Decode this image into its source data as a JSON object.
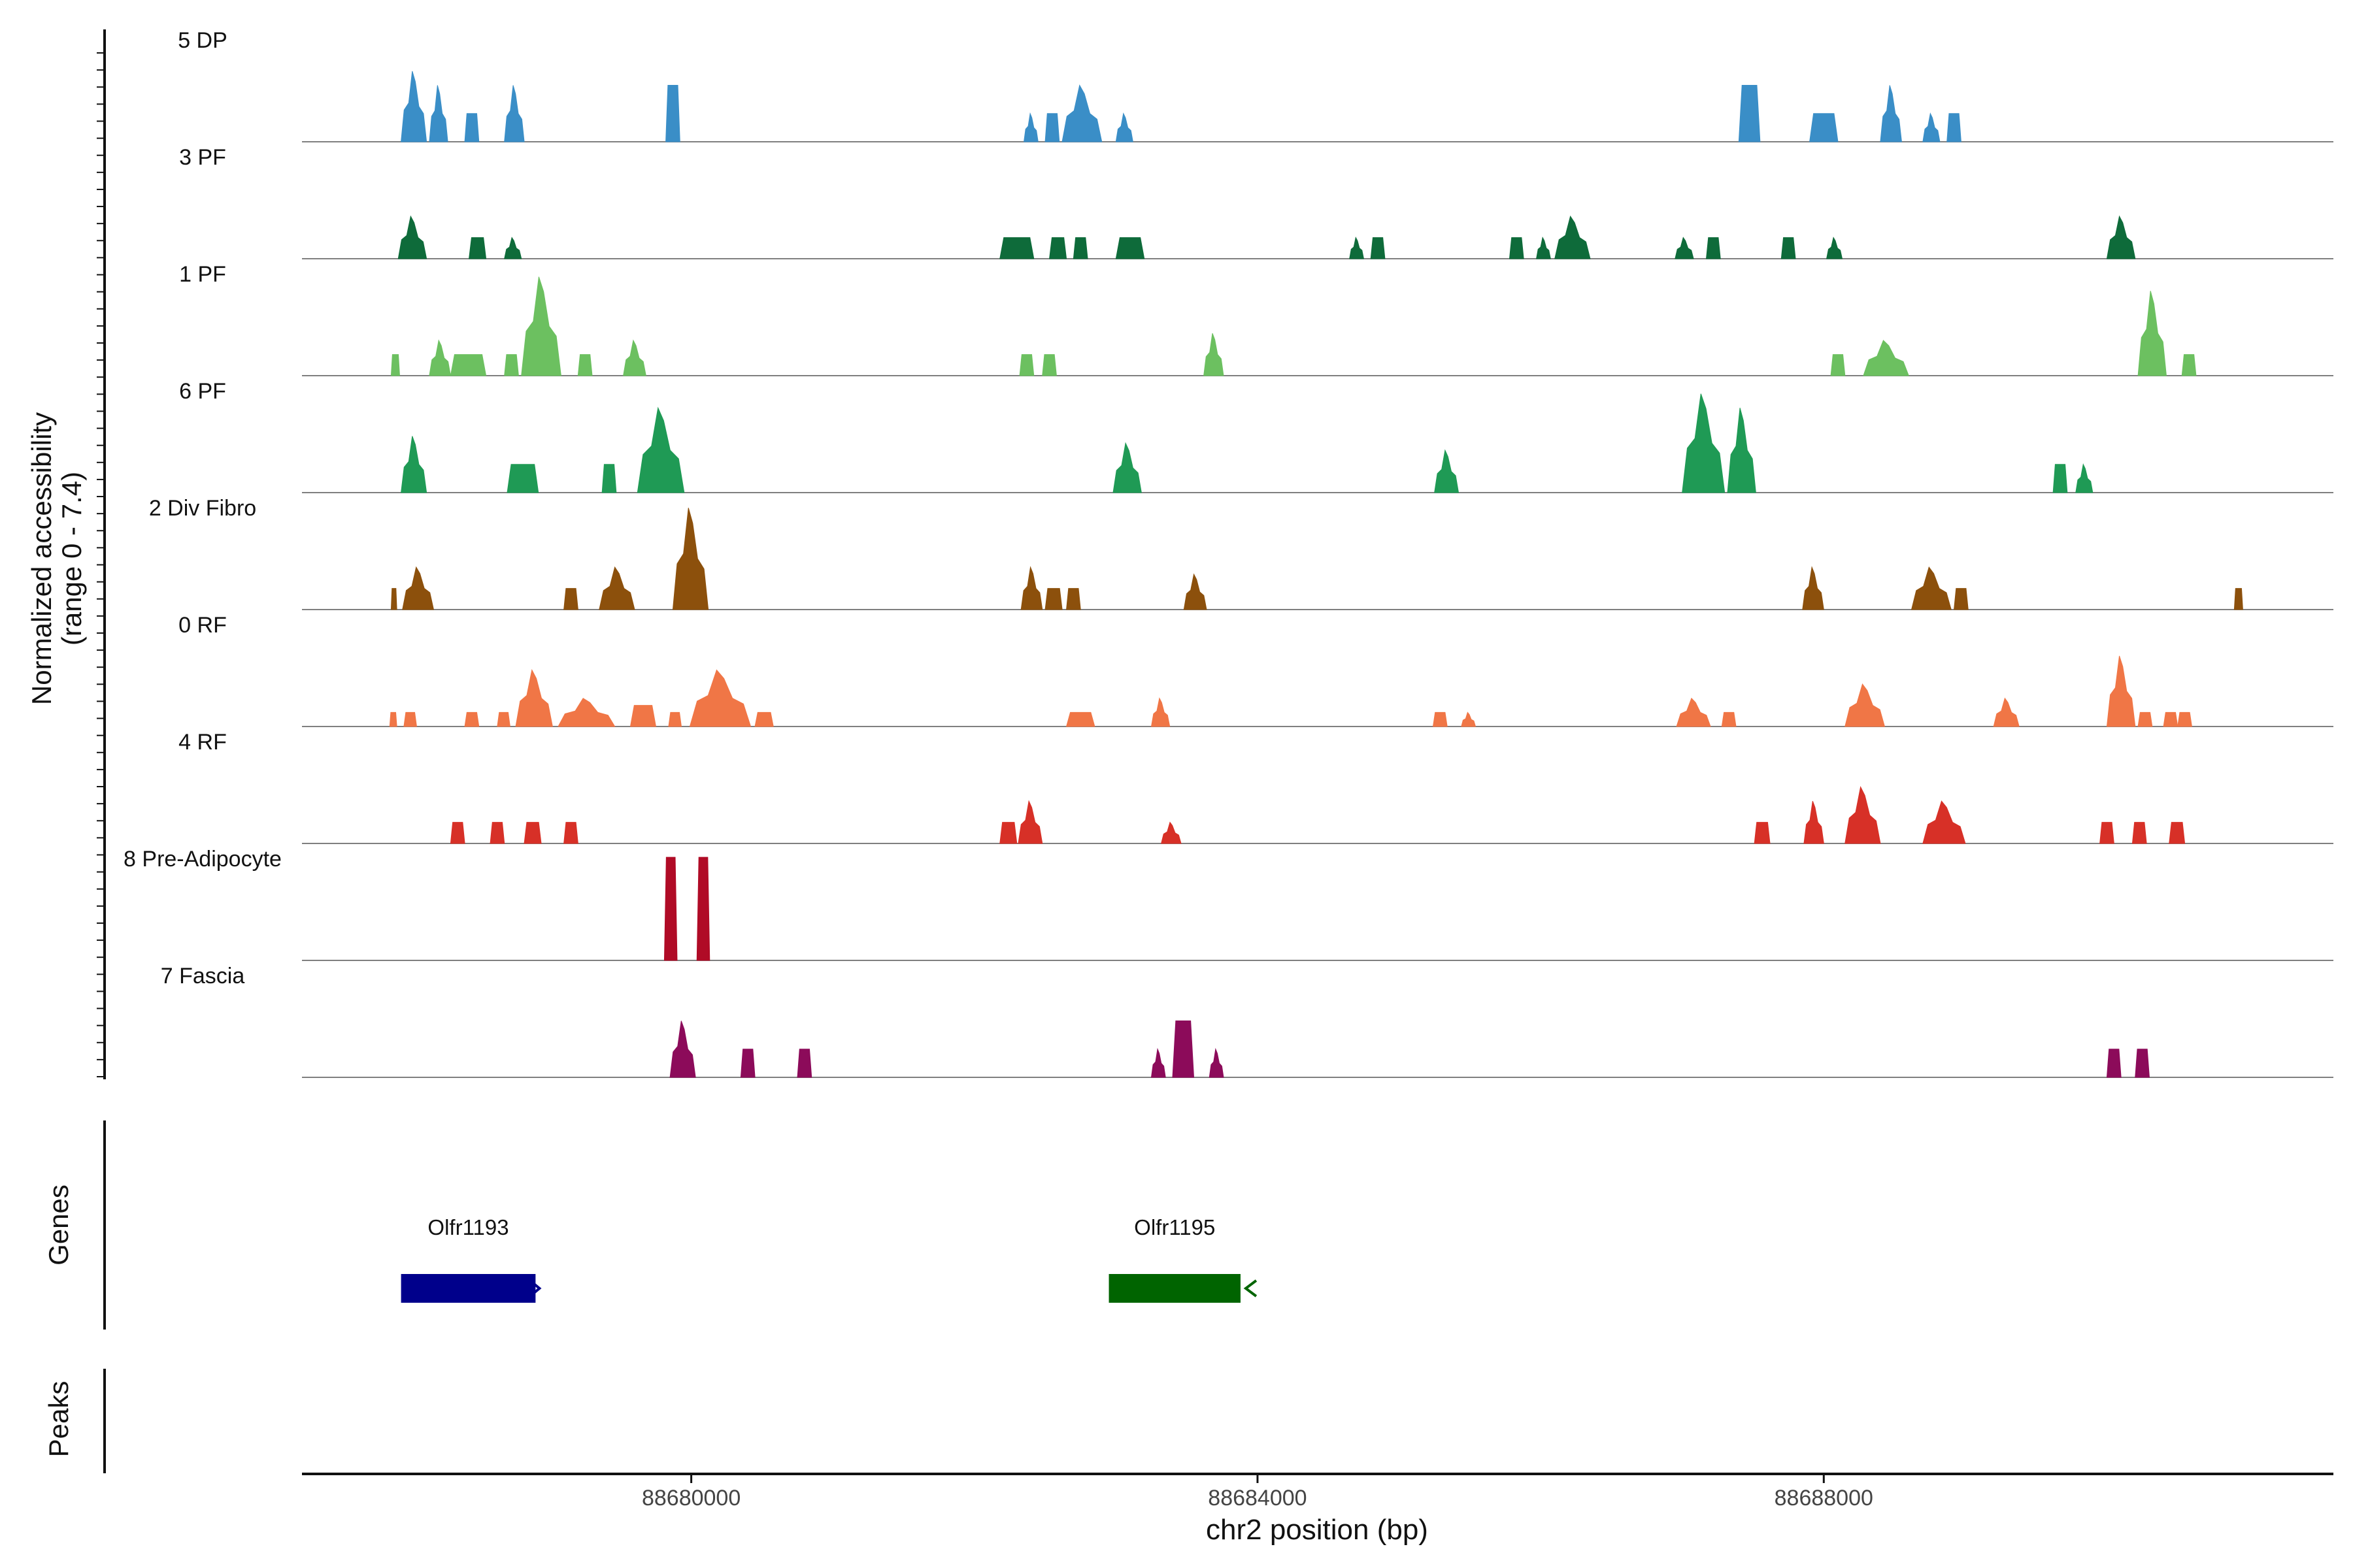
{
  "chart_data": {
    "type": "area",
    "title": "",
    "xlabel": "chr2 position (bp)",
    "ylabel_line1": "Normalized accessibility",
    "ylabel_line2": "(range 0 - 7.4)",
    "ylim": [
      0,
      7.4
    ],
    "xlim": [
      88677250,
      88691600
    ],
    "x_ticks": [
      88680000,
      88684000,
      88688000
    ],
    "x_tick_labels": [
      "88680000",
      "88684000",
      "88688000"
    ],
    "genes_panel_label": "Genes",
    "peaks_panel_label": "Peaks",
    "series": [
      {
        "name": "5 DP",
        "color": "#3a8ec7",
        "peaks": [
          [
            88677950,
            88678130,
            5.0,
            1
          ],
          [
            88678150,
            88678280,
            4.0,
            1
          ],
          [
            88678400,
            88678500,
            2.0,
            0
          ],
          [
            88678680,
            88678820,
            4.0,
            1
          ],
          [
            88679820,
            88679920,
            4.0,
            0
          ],
          [
            88682350,
            88682450,
            2.0,
            1
          ],
          [
            88682500,
            88682600,
            2.0,
            0
          ],
          [
            88682620,
            88682900,
            4.0,
            1
          ],
          [
            88683000,
            88683120,
            2.0,
            1
          ],
          [
            88687400,
            88687550,
            4.0,
            0
          ],
          [
            88687900,
            88688100,
            2.0,
            0
          ],
          [
            88688400,
            88688550,
            4.0,
            1
          ],
          [
            88688700,
            88688820,
            2.0,
            1
          ],
          [
            88688870,
            88688970,
            2.0,
            0
          ]
        ]
      },
      {
        "name": "3 PF",
        "color": "#0e6b3a",
        "peaks": [
          [
            88677930,
            88678130,
            3.0,
            1
          ],
          [
            88678430,
            88678550,
            1.5,
            0
          ],
          [
            88678680,
            88678800,
            1.5,
            1
          ],
          [
            88682180,
            88682420,
            1.5,
            0
          ],
          [
            88682530,
            88682650,
            1.5,
            0
          ],
          [
            88682700,
            88682800,
            1.5,
            0
          ],
          [
            88683000,
            88683200,
            1.5,
            0
          ],
          [
            88684650,
            88684750,
            1.5,
            1
          ],
          [
            88684800,
            88684900,
            1.5,
            0
          ],
          [
            88685780,
            88685880,
            1.5,
            0
          ],
          [
            88685970,
            88686070,
            1.5,
            1
          ],
          [
            88686100,
            88686350,
            3.0,
            1
          ],
          [
            88686950,
            88687080,
            1.5,
            1
          ],
          [
            88687170,
            88687270,
            1.5,
            0
          ],
          [
            88687700,
            88687800,
            1.5,
            0
          ],
          [
            88688020,
            88688130,
            1.5,
            1
          ],
          [
            88690000,
            88690200,
            3.0,
            1
          ]
        ]
      },
      {
        "name": "1 PF",
        "color": "#6cc060",
        "peaks": [
          [
            88677880,
            88677940,
            1.5,
            0
          ],
          [
            88678150,
            88678300,
            2.5,
            1
          ],
          [
            88678300,
            88678550,
            1.5,
            0
          ],
          [
            88678680,
            88678780,
            1.5,
            0
          ],
          [
            88678800,
            88679080,
            7.0,
            1
          ],
          [
            88679200,
            88679300,
            1.5,
            0
          ],
          [
            88679520,
            88679680,
            2.5,
            1
          ],
          [
            88682320,
            88682420,
            1.5,
            0
          ],
          [
            88682480,
            88682580,
            1.5,
            0
          ],
          [
            88683620,
            88683760,
            3.0,
            1
          ],
          [
            88688050,
            88688150,
            1.5,
            0
          ],
          [
            88688280,
            88688600,
            2.5,
            1
          ],
          [
            88690220,
            88690420,
            6.0,
            1
          ],
          [
            88690530,
            88690630,
            1.5,
            0
          ]
        ]
      },
      {
        "name": "6 PF",
        "color": "#1f9a55",
        "peaks": [
          [
            88677950,
            88678130,
            4.0,
            1
          ],
          [
            88678700,
            88678920,
            2.0,
            0
          ],
          [
            88679370,
            88679470,
            2.0,
            0
          ],
          [
            88679620,
            88679950,
            6.0,
            1
          ],
          [
            88682980,
            88683180,
            3.5,
            1
          ],
          [
            88685250,
            88685420,
            3.0,
            1
          ],
          [
            88687000,
            88687300,
            7.0,
            1
          ],
          [
            88687320,
            88687520,
            6.0,
            1
          ],
          [
            88689620,
            88689720,
            2.0,
            0
          ],
          [
            88689780,
            88689900,
            2.0,
            1
          ]
        ]
      },
      {
        "name": "2 Div Fibro",
        "color": "#8c500c",
        "peaks": [
          [
            88677880,
            88677920,
            1.5,
            0
          ],
          [
            88677960,
            88678180,
            3.0,
            1
          ],
          [
            88679100,
            88679200,
            1.5,
            0
          ],
          [
            88679350,
            88679600,
            3.0,
            1
          ],
          [
            88679870,
            88680120,
            7.2,
            1
          ],
          [
            88682330,
            88682480,
            3.0,
            1
          ],
          [
            88682500,
            88682620,
            1.5,
            0
          ],
          [
            88682650,
            88682750,
            1.5,
            0
          ],
          [
            88683480,
            88683640,
            2.5,
            1
          ],
          [
            88687850,
            88688000,
            3.0,
            1
          ],
          [
            88688620,
            88688900,
            3.0,
            1
          ],
          [
            88688920,
            88689020,
            1.5,
            0
          ],
          [
            88690900,
            88690960,
            1.5,
            0
          ]
        ]
      },
      {
        "name": "0 RF",
        "color": "#f07646",
        "peaks": [
          [
            88677870,
            88677920,
            1.0,
            0
          ],
          [
            88677970,
            88678060,
            1.0,
            0
          ],
          [
            88678400,
            88678500,
            1.0,
            0
          ],
          [
            88678630,
            88678720,
            1.0,
            0
          ],
          [
            88678760,
            88679020,
            4.0,
            1
          ],
          [
            88679060,
            88679460,
            2.0,
            1
          ],
          [
            88679570,
            88679750,
            1.5,
            0
          ],
          [
            88679840,
            88679930,
            1.0,
            0
          ],
          [
            88679990,
            88680420,
            4.0,
            1
          ],
          [
            88680450,
            88680580,
            1.0,
            0
          ],
          [
            88682650,
            88682850,
            1.0,
            0
          ],
          [
            88683250,
            88683380,
            2.0,
            1
          ],
          [
            88685240,
            88685340,
            1.0,
            0
          ],
          [
            88685440,
            88685540,
            1.0,
            1
          ],
          [
            88686960,
            88687200,
            2.0,
            1
          ],
          [
            88687280,
            88687380,
            1.0,
            0
          ],
          [
            88688150,
            88688430,
            3.0,
            1
          ],
          [
            88689200,
            88689380,
            2.0,
            1
          ],
          [
            88690000,
            88690200,
            5.0,
            1
          ],
          [
            88690220,
            88690320,
            1.0,
            0
          ],
          [
            88690400,
            88690500,
            1.0,
            0
          ],
          [
            88690500,
            88690600,
            1.0,
            0
          ]
        ]
      },
      {
        "name": "4 RF",
        "color": "#d73027",
        "peaks": [
          [
            88678300,
            88678400,
            1.5,
            0
          ],
          [
            88678580,
            88678680,
            1.5,
            0
          ],
          [
            88678820,
            88678940,
            1.5,
            0
          ],
          [
            88679100,
            88679200,
            1.5,
            0
          ],
          [
            88682180,
            88682300,
            1.5,
            0
          ],
          [
            88682310,
            88682480,
            3.0,
            1
          ],
          [
            88683320,
            88683460,
            1.5,
            1
          ],
          [
            88687510,
            88687620,
            1.5,
            0
          ],
          [
            88687860,
            88688000,
            3.0,
            1
          ],
          [
            88688150,
            88688400,
            4.0,
            1
          ],
          [
            88688700,
            88689000,
            3.0,
            1
          ],
          [
            88689950,
            88690050,
            1.5,
            0
          ],
          [
            88690180,
            88690280,
            1.5,
            0
          ],
          [
            88690440,
            88690550,
            1.5,
            0
          ]
        ]
      },
      {
        "name": "8 Pre-Adipocyte",
        "color": "#b00b26",
        "peaks": [
          [
            88679810,
            88679900,
            7.3,
            0
          ],
          [
            88680040,
            88680130,
            7.3,
            0
          ]
        ]
      },
      {
        "name": "7 Fascia",
        "color": "#8c0b5a",
        "peaks": [
          [
            88679850,
            88680030,
            4.0,
            1
          ],
          [
            88680350,
            88680450,
            2.0,
            0
          ],
          [
            88680750,
            88680850,
            2.0,
            0
          ],
          [
            88683250,
            88683350,
            2.0,
            1
          ],
          [
            88683400,
            88683550,
            4.0,
            0
          ],
          [
            88683660,
            88683760,
            2.0,
            1
          ],
          [
            88690000,
            88690100,
            2.0,
            0
          ],
          [
            88690200,
            88690300,
            2.0,
            0
          ]
        ]
      }
    ],
    "genes": [
      {
        "name": "Olfr1193",
        "start": 88677950,
        "end": 88678900,
        "strand": "+",
        "color": "#00008b"
      },
      {
        "name": "Olfr1195",
        "start": 88682950,
        "end": 88683880,
        "strand": "-",
        "color": "#006400"
      }
    ]
  }
}
